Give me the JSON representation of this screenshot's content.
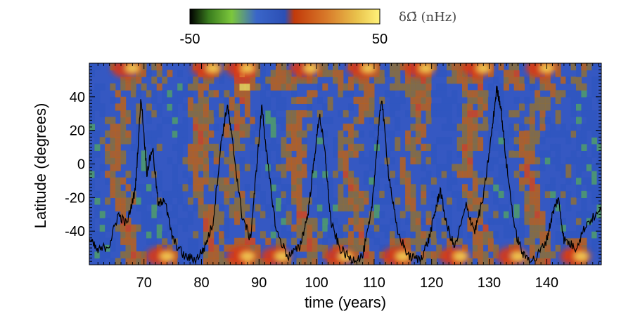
{
  "chart_data": {
    "type": "heatmap",
    "title": "",
    "xlabel": "time (years)",
    "ylabel": "Latitude (degrees)",
    "xlim": [
      60.5,
      149.5
    ],
    "ylim": [
      -60,
      60
    ],
    "x_ticks": [
      70,
      80,
      90,
      100,
      110,
      120,
      130,
      140
    ],
    "y_ticks": [
      40,
      20,
      0,
      -20,
      -40
    ],
    "colorbar": {
      "label": "δΩ̄  (nHz)",
      "min_label": "-50",
      "max_label": "50",
      "min": -50,
      "max": 50,
      "colors": [
        "#000000",
        "#3a7d1e",
        "#7cc73c",
        "#3a66c9",
        "#2c4fb5",
        "#c23a0a",
        "#d87a2a",
        "#e9c24c",
        "#fff27a"
      ]
    },
    "cycle_maxima_years": [
      70,
      84,
      90,
      101,
      111,
      121,
      131,
      142
    ],
    "activity_curve": {
      "description_free": true,
      "x": [
        60.5,
        62,
        64,
        65.5,
        67,
        68.5,
        69.5,
        70.5,
        71.5,
        72.5,
        73.5,
        75,
        77,
        79,
        80.5,
        82,
        83.5,
        84.5,
        85.5,
        87,
        88.5,
        89.5,
        90.5,
        91.5,
        93,
        95,
        97,
        98.5,
        99.5,
        100.5,
        101.5,
        102.5,
        104,
        106,
        108,
        109.5,
        110.5,
        111.3,
        112.5,
        114,
        116,
        118,
        119.5,
        120.5,
        121.5,
        122.5,
        124,
        126,
        127.5,
        129,
        130.5,
        131.3,
        132,
        133,
        134.5,
        136,
        138,
        140,
        141,
        142,
        143,
        145,
        147,
        149.5
      ],
      "y": [
        -45,
        -52,
        -48,
        -30,
        -36,
        -15,
        40,
        -5,
        10,
        -25,
        -20,
        -45,
        -55,
        -57,
        -50,
        -35,
        15,
        35,
        10,
        -30,
        -45,
        -5,
        35,
        0,
        -40,
        -55,
        -50,
        -30,
        0,
        30,
        5,
        -35,
        -50,
        -57,
        -55,
        -30,
        10,
        40,
        -5,
        -40,
        -55,
        -57,
        -45,
        -30,
        -15,
        -35,
        -50,
        -25,
        -40,
        -20,
        20,
        45,
        35,
        0,
        -40,
        -55,
        -57,
        -45,
        -30,
        -20,
        -45,
        -50,
        -35,
        -28
      ]
    }
  }
}
